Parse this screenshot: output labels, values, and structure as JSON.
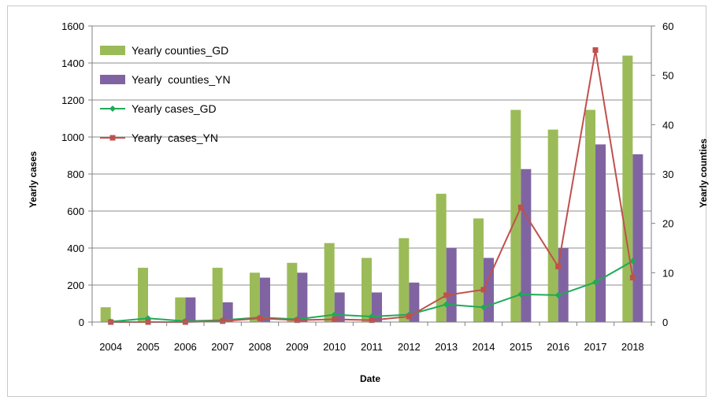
{
  "chart_data": {
    "type": "bar",
    "title": "",
    "xlabel": "Date",
    "ylabel_left": "Yearly cases",
    "ylabel_right": "Yearly counties",
    "ylim_left": [
      0,
      1600
    ],
    "ylim_right": [
      0,
      60
    ],
    "yticks_left": [
      "0",
      "200",
      "400",
      "600",
      "800",
      "1000",
      "1200",
      "1400",
      "1600"
    ],
    "yticks_right": [
      "0",
      "10",
      "20",
      "30",
      "40",
      "50",
      "60"
    ],
    "categories": [
      "2004",
      "2005",
      "2006",
      "2007",
      "2008",
      "2009",
      "2010",
      "2011",
      "2012",
      "2013",
      "2014",
      "2015",
      "2016",
      "2017",
      "2018"
    ],
    "grid": true,
    "legend_position": "top-left",
    "series": [
      {
        "name": "Yearly counties_GD",
        "kind": "bar",
        "axis": "right",
        "color": "#9bbb59",
        "values": [
          3,
          11,
          5,
          11,
          10,
          12,
          16,
          13,
          17,
          26,
          21,
          43,
          39,
          43,
          54
        ]
      },
      {
        "name": "Yearly  counties_YN",
        "kind": "bar",
        "axis": "right",
        "color": "#8064a2",
        "values": [
          0,
          0,
          5,
          4,
          9,
          10,
          6,
          6,
          8,
          15,
          13,
          31,
          15,
          36,
          34
        ]
      },
      {
        "name": "Yearly cases_GD",
        "kind": "line",
        "axis": "left",
        "color": "#1faa59",
        "marker": "diamond",
        "values": [
          2,
          20,
          5,
          10,
          25,
          15,
          40,
          30,
          40,
          95,
          80,
          150,
          145,
          215,
          330
        ]
      },
      {
        "name": "Yearly  cases_YN",
        "kind": "line",
        "axis": "left",
        "color": "#c0504d",
        "marker": "square",
        "values": [
          0,
          0,
          0,
          5,
          20,
          10,
          15,
          10,
          30,
          145,
          175,
          620,
          300,
          1470,
          240
        ]
      }
    ]
  }
}
